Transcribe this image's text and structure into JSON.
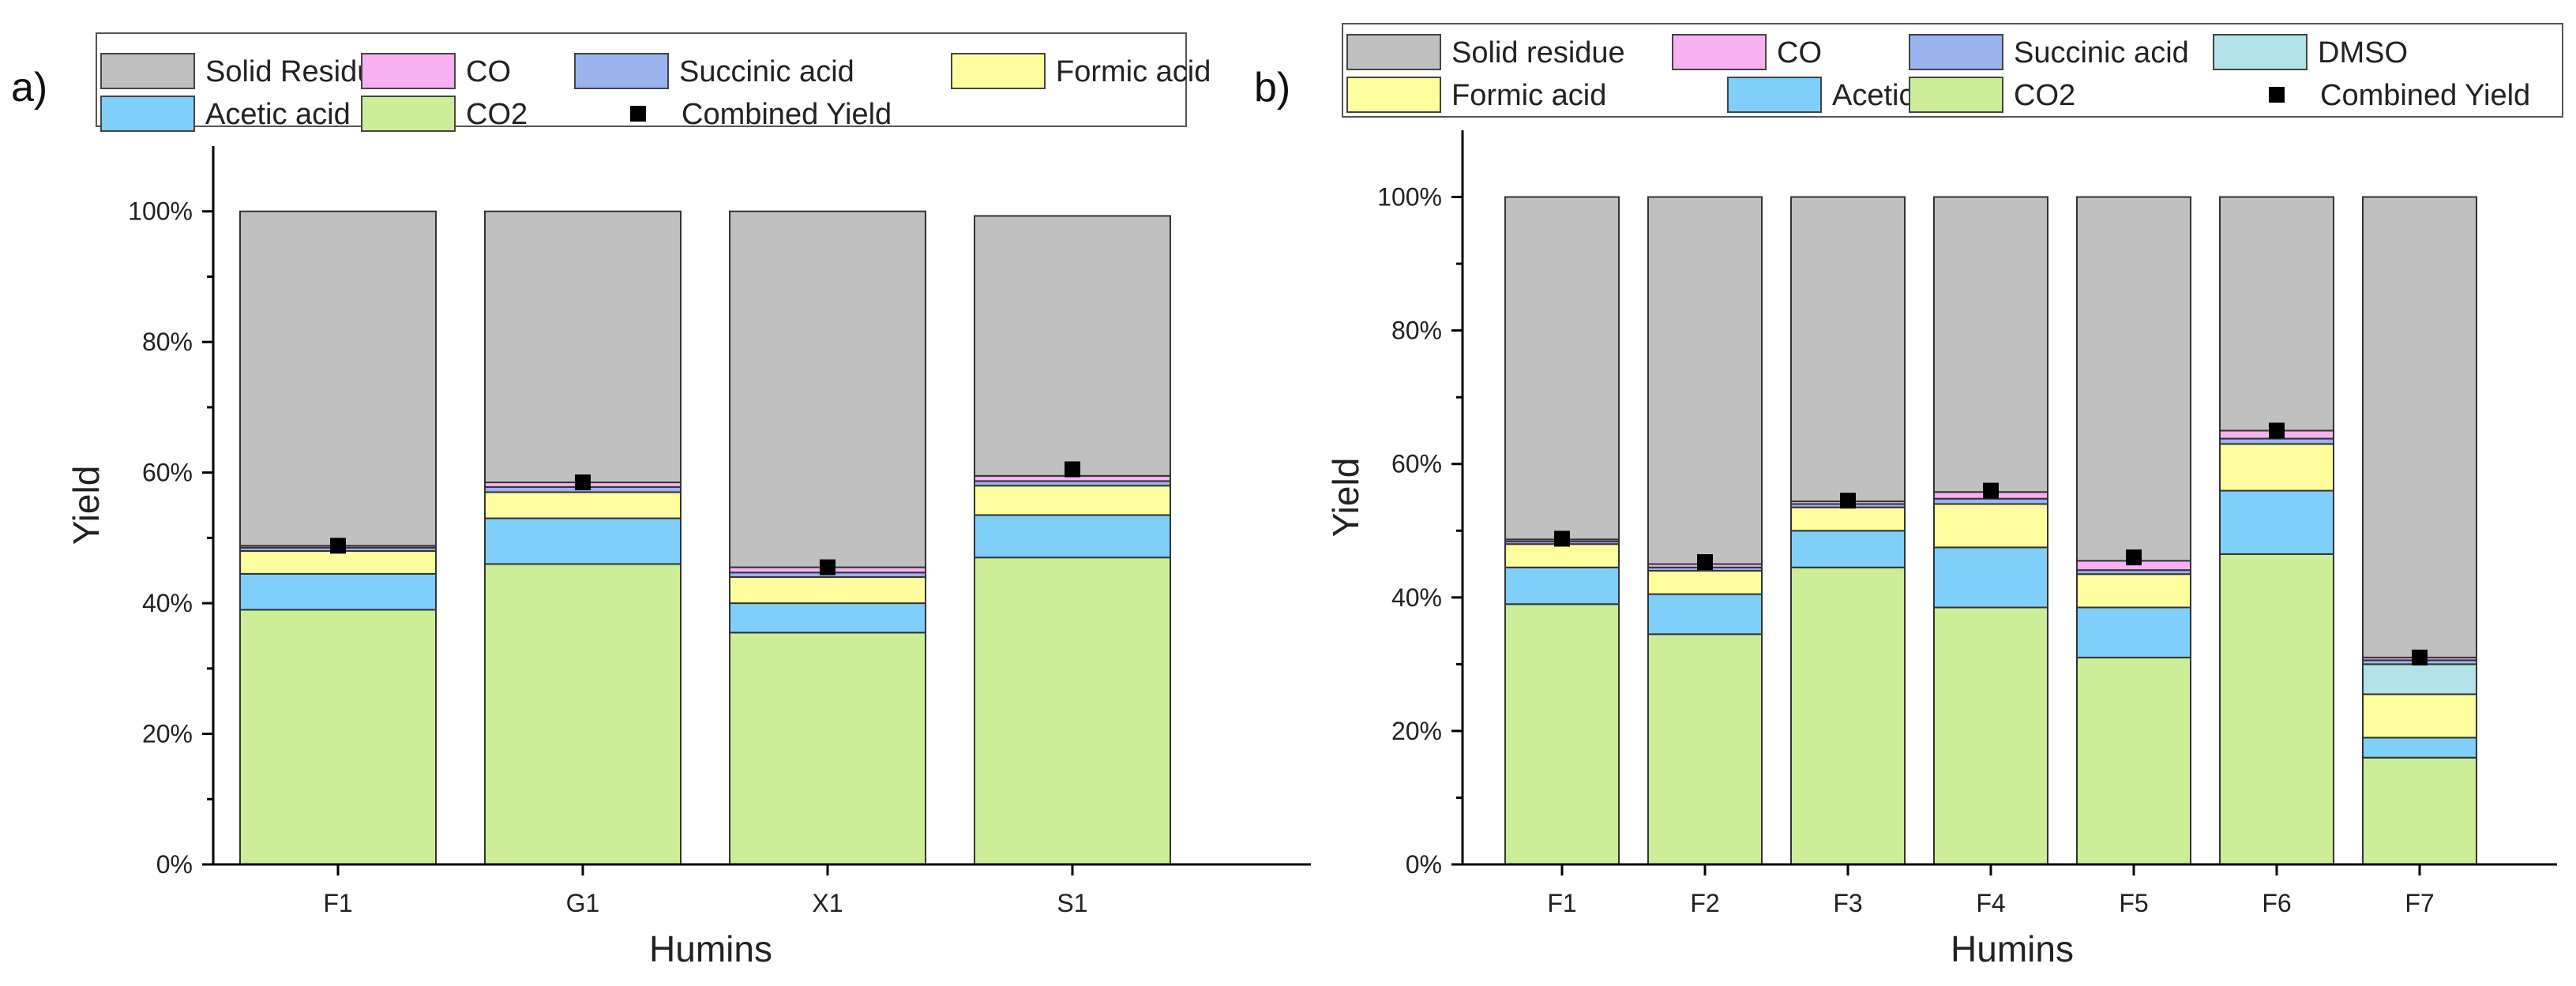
{
  "chart_data": [
    {
      "panel": "a)",
      "type": "bar",
      "stacked": true,
      "title": "",
      "xlabel": "Humins",
      "ylabel": "Yield",
      "ylim": [
        0,
        110
      ],
      "yticks": [
        0,
        20,
        40,
        60,
        80,
        100
      ],
      "ytick_labels": [
        "0%",
        "20%",
        "40%",
        "60%",
        "80%",
        "100%"
      ],
      "categories": [
        "F1",
        "G1",
        "X1",
        "S1"
      ],
      "series": [
        {
          "name": "CO2",
          "color": "#cdee98",
          "values": [
            39,
            46,
            35.5,
            47
          ]
        },
        {
          "name": "Acetic acid",
          "color": "#80cffa",
          "values": [
            5.5,
            7,
            4.5,
            6.5
          ]
        },
        {
          "name": "Formic acid",
          "color": "#fefe9e",
          "values": [
            3.5,
            4,
            4,
            4.5
          ]
        },
        {
          "name": "Succinic acid",
          "color": "#99b4ee",
          "values": [
            0.5,
            0.8,
            0.7,
            0.7
          ]
        },
        {
          "name": "CO",
          "color": "#f7b1f2",
          "values": [
            0.3,
            0.7,
            0.8,
            0.8
          ]
        },
        {
          "name": "Solid Residue",
          "color": "#c0c0c0",
          "values": [
            51.2,
            41.5,
            54.5,
            39.8
          ]
        }
      ],
      "combined_yield": {
        "name": "Combined Yield",
        "color": "#000000",
        "values": [
          48.8,
          58.5,
          45.5,
          60.5
        ]
      },
      "legend": {
        "position": "top",
        "rows": [
          [
            "Solid Residue",
            "CO",
            "Succinic acid",
            "Formic acid"
          ],
          [
            "Acetic acid",
            "CO2",
            "Combined Yield"
          ]
        ]
      }
    },
    {
      "panel": "b)",
      "type": "bar",
      "stacked": true,
      "title": "",
      "xlabel": "Humins",
      "ylabel": "Yield",
      "ylim": [
        0,
        110
      ],
      "yticks": [
        0,
        20,
        40,
        60,
        80,
        100
      ],
      "ytick_labels": [
        "0%",
        "20%",
        "40%",
        "60%",
        "80%",
        "100%"
      ],
      "categories": [
        "F1",
        "F2",
        "F3",
        "F4",
        "F5",
        "F6",
        "F7"
      ],
      "series": [
        {
          "name": "CO2",
          "color": "#cdee98",
          "values": [
            39,
            34.5,
            44.5,
            38.5,
            31,
            46.5,
            16
          ]
        },
        {
          "name": "Acetic acid",
          "color": "#80cffa",
          "values": [
            5.5,
            6,
            5.5,
            9,
            7.5,
            9.5,
            3
          ]
        },
        {
          "name": "Formic acid",
          "color": "#fefe9e",
          "values": [
            3.5,
            3.5,
            3.5,
            6.5,
            5,
            7,
            6.5
          ]
        },
        {
          "name": "DMSO",
          "color": "#b3e3e8",
          "values": [
            0,
            0,
            0,
            0,
            0,
            0,
            4.5
          ]
        },
        {
          "name": "Succinic acid",
          "color": "#99b4ee",
          "values": [
            0.4,
            0.5,
            0.5,
            0.8,
            0.6,
            0.8,
            0.6
          ]
        },
        {
          "name": "CO",
          "color": "#f7b1f2",
          "values": [
            0.3,
            0.5,
            0.4,
            1,
            1.4,
            1.2,
            0.4
          ]
        },
        {
          "name": "Solid residue",
          "color": "#c0c0c0",
          "values": [
            51.3,
            55,
            45.6,
            44.2,
            54.5,
            35,
            69
          ]
        }
      ],
      "combined_yield": {
        "name": "Combined Yield",
        "color": "#000000",
        "values": [
          48.8,
          45.3,
          54.5,
          56,
          46,
          65,
          31
        ]
      },
      "legend": {
        "position": "top",
        "rows": [
          [
            "Solid residue",
            "CO",
            "Succinic acid",
            "DMSO"
          ],
          [
            "Formic acid",
            "Acetic acid",
            "CO2",
            "Combined Yield"
          ]
        ]
      }
    }
  ]
}
